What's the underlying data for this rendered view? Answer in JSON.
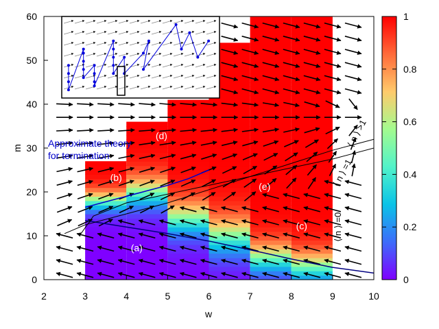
{
  "chart_data": {
    "type": "heatmap",
    "title": "",
    "xlabel": "w",
    "ylabel": "m",
    "xlim": [
      2,
      10
    ],
    "ylim": [
      0,
      60
    ],
    "x_ticks": [
      "2",
      "3",
      "4",
      "5",
      "6",
      "7",
      "8",
      "9",
      "10"
    ],
    "y_ticks": [
      "0",
      "10",
      "20",
      "30",
      "40",
      "50",
      "60"
    ],
    "colorbar": {
      "range": [
        0,
        1
      ],
      "ticks": [
        "0",
        "0.2",
        "0.4",
        "0.6",
        "0.8",
        "1"
      ],
      "colors": [
        "#7f00ff",
        "#3d6cfa",
        "#0ac3e7",
        "#52f3c9",
        "#a3fb8f",
        "#ffca6b",
        "#ff6a39",
        "#ff0000"
      ]
    },
    "columns": [
      {
        "w": [
          3,
          4
        ],
        "m_max": 27,
        "transition_m": 18,
        "width": 6
      },
      {
        "w": [
          4,
          5
        ],
        "m_max": 36,
        "transition_m": 20,
        "width": 9
      },
      {
        "w": [
          5,
          6
        ],
        "m_max": 41,
        "transition_m": 14,
        "width": 10
      },
      {
        "w": [
          6,
          7
        ],
        "m_max": 54,
        "transition_m": 10,
        "width": 11
      },
      {
        "w": [
          7,
          8
        ],
        "m_max": 60,
        "transition_m": 5,
        "width": 9
      },
      {
        "w": [
          8,
          9
        ],
        "m_max": 60,
        "transition_m": 3,
        "width": 9
      }
    ],
    "region_labels": [
      {
        "text": "(a)",
        "w": 4.25,
        "m": 6.5
      },
      {
        "text": "(b)",
        "w": 3.75,
        "m": 22.5
      },
      {
        "text": "(c)",
        "w": 8.25,
        "m": 11.5
      },
      {
        "text": "(d)",
        "w": 4.85,
        "m": 32
      },
      {
        "text": "(e)",
        "w": 7.35,
        "m": 20.5
      }
    ],
    "annotation": {
      "line1": "Approximate theory",
      "line2": "for termination",
      "w": 2.1,
      "m": 30
    },
    "n_labels": [
      {
        "text": "⟨ n ⟩ =0",
        "w": 9.2,
        "m": 12
      },
      {
        "text": "⟨ n ⟩ =1",
        "w": 9.3,
        "m": 24
      },
      {
        "text": "⟨ n ⟩ >1",
        "w": 9.65,
        "m": 33
      }
    ],
    "lines": {
      "n_eq_0": [
        [
          3.0,
          13.5
        ],
        [
          4.0,
          12.0
        ],
        [
          5.0,
          10.5
        ],
        [
          6.0,
          8.8
        ],
        [
          7.0,
          6.8
        ],
        [
          8.0,
          4.7
        ],
        [
          9.0,
          2.8
        ],
        [
          10.0,
          1.5
        ]
      ],
      "n_eq_1": [
        [
          2.5,
          10.5
        ],
        [
          3.0,
          12.5
        ],
        [
          4.0,
          15.0
        ],
        [
          5.0,
          17.5
        ],
        [
          6.0,
          20.5
        ],
        [
          7.0,
          23.5
        ],
        [
          8.0,
          26.5
        ],
        [
          9.0,
          29.5
        ],
        [
          10.0,
          32.0
        ]
      ],
      "n_gt_1": [
        [
          2.9,
          10.5
        ],
        [
          3.2,
          14.5
        ],
        [
          4.0,
          17.5
        ],
        [
          5.0,
          19.5
        ],
        [
          6.0,
          21.5
        ],
        [
          7.0,
          23.5
        ],
        [
          8.0,
          25.5
        ],
        [
          9.0,
          27.5
        ],
        [
          10.0,
          30.0
        ]
      ],
      "theory": [
        [
          3.0,
          16.5
        ],
        [
          4.0,
          19.0
        ],
        [
          5.0,
          21.5
        ],
        [
          5.5,
          23.0
        ],
        [
          6.0,
          25.0
        ]
      ]
    },
    "inset_points": [
      [
        2.45,
        9
      ],
      [
        2.45,
        8
      ],
      [
        2.45,
        7
      ],
      [
        2.45,
        6
      ],
      [
        3.0,
        11
      ],
      [
        3.0,
        10.5
      ],
      [
        3.0,
        9.5
      ],
      [
        3.0,
        8.5
      ],
      [
        3.0,
        7.5
      ],
      [
        3.4,
        9
      ],
      [
        3.4,
        8
      ],
      [
        3.4,
        7
      ],
      [
        3.4,
        6.5
      ],
      [
        4.1,
        12
      ],
      [
        4.1,
        11
      ],
      [
        4.1,
        10
      ],
      [
        4.1,
        9
      ],
      [
        4.1,
        8
      ],
      [
        4.5,
        10
      ],
      [
        4.5,
        8
      ],
      [
        5.2,
        10.5
      ],
      [
        5.4,
        12
      ],
      [
        5.2,
        8.5
      ],
      [
        6.4,
        14
      ],
      [
        6.6,
        11
      ],
      [
        6.9,
        13
      ],
      [
        7.2,
        10
      ],
      [
        7.6,
        12
      ]
    ]
  }
}
